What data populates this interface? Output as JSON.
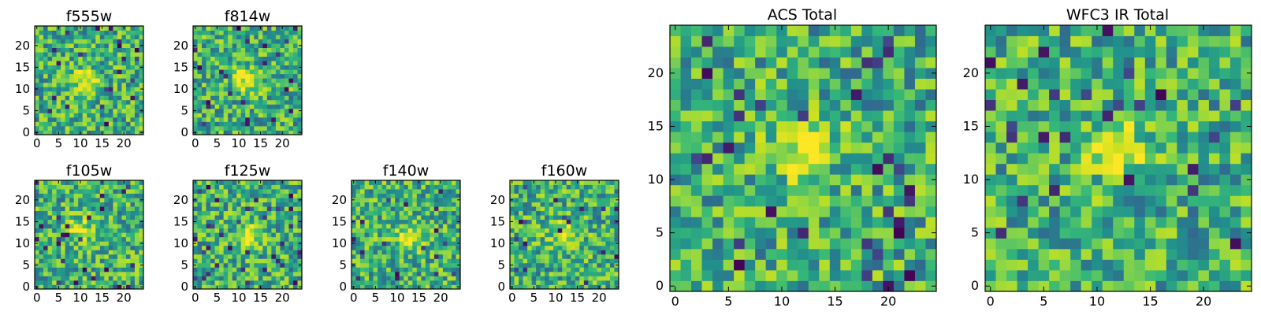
{
  "chart_data": [
    {
      "type": "heatmap",
      "title": "f555w",
      "xlim": [
        0,
        25
      ],
      "ylim": [
        0,
        25
      ],
      "xticks": [
        0,
        5,
        10,
        15,
        20
      ],
      "yticks": [
        0,
        5,
        10,
        15,
        20
      ],
      "grid_size": [
        25,
        25
      ],
      "colormap": "viridis",
      "peak": [
        11,
        12
      ]
    },
    {
      "type": "heatmap",
      "title": "f814w",
      "xlim": [
        0,
        25
      ],
      "ylim": [
        0,
        25
      ],
      "xticks": [
        0,
        5,
        10,
        15,
        20
      ],
      "yticks": [
        0,
        5,
        10,
        15,
        20
      ],
      "grid_size": [
        25,
        25
      ],
      "colormap": "viridis",
      "peak": [
        12,
        12
      ]
    },
    {
      "type": "heatmap",
      "title": "f105w",
      "xlim": [
        0,
        25
      ],
      "ylim": [
        0,
        25
      ],
      "xticks": [
        0,
        5,
        10,
        15,
        20
      ],
      "yticks": [
        0,
        5,
        10,
        15,
        20
      ],
      "grid_size": [
        25,
        25
      ],
      "colormap": "viridis",
      "peak": [
        10,
        13
      ]
    },
    {
      "type": "heatmap",
      "title": "f125w",
      "xlim": [
        0,
        25
      ],
      "ylim": [
        0,
        25
      ],
      "xticks": [
        0,
        5,
        10,
        15,
        20
      ],
      "yticks": [
        0,
        5,
        10,
        15,
        20
      ],
      "grid_size": [
        25,
        25
      ],
      "colormap": "viridis",
      "peak": [
        12,
        12
      ]
    },
    {
      "type": "heatmap",
      "title": "f140w",
      "xlim": [
        0,
        25
      ],
      "ylim": [
        0,
        25
      ],
      "xticks": [
        0,
        5,
        10,
        15,
        20
      ],
      "yticks": [
        0,
        5,
        10,
        15,
        20
      ],
      "grid_size": [
        25,
        25
      ],
      "colormap": "viridis",
      "peak": [
        13,
        11
      ]
    },
    {
      "type": "heatmap",
      "title": "f160w",
      "xlim": [
        0,
        25
      ],
      "ylim": [
        0,
        25
      ],
      "xticks": [
        0,
        5,
        10,
        15,
        20
      ],
      "yticks": [
        0,
        5,
        10,
        15,
        20
      ],
      "grid_size": [
        25,
        25
      ],
      "colormap": "viridis",
      "peak": [
        12,
        12
      ]
    },
    {
      "type": "heatmap",
      "title": "ACS Total",
      "xlim": [
        0,
        25
      ],
      "ylim": [
        0,
        25
      ],
      "xticks": [
        0,
        5,
        10,
        15,
        20
      ],
      "yticks": [
        0,
        5,
        10,
        15,
        20
      ],
      "grid_size": [
        25,
        25
      ],
      "colormap": "viridis",
      "peak": [
        12,
        13
      ]
    },
    {
      "type": "heatmap",
      "title": "WFC3 IR Total",
      "xlim": [
        0,
        25
      ],
      "ylim": [
        0,
        25
      ],
      "xticks": [
        0,
        5,
        10,
        15,
        20
      ],
      "yticks": [
        0,
        5,
        10,
        15,
        20
      ],
      "grid_size": [
        25,
        25
      ],
      "colormap": "viridis",
      "peak": [
        12,
        13
      ]
    }
  ]
}
